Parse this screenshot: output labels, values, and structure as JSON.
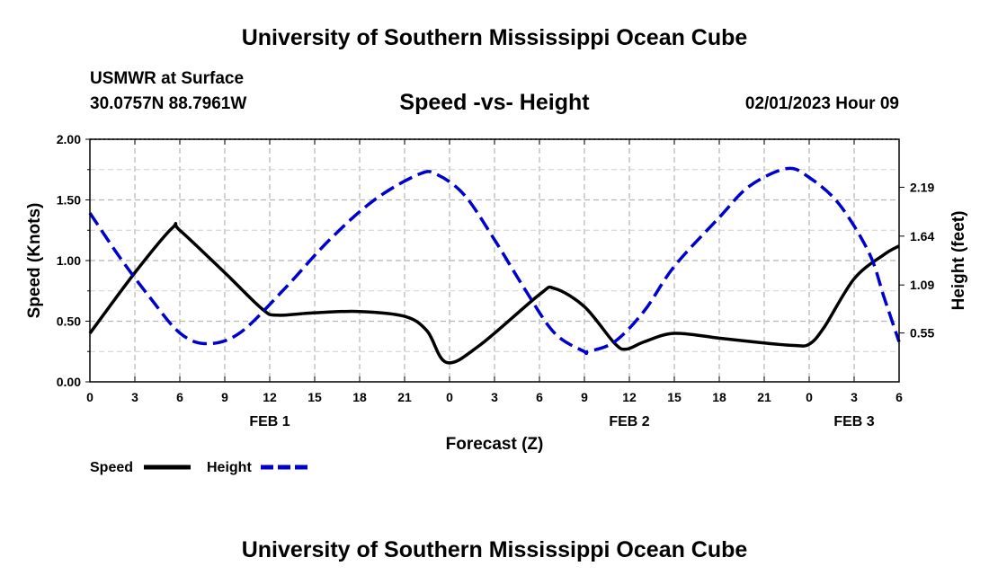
{
  "header": {
    "title": "University of Southern Mississippi Ocean Cube",
    "station_name": "USMWR at Surface",
    "station_coords": "30.0757N  88.7961W",
    "date_label": "02/01/2023 Hour 09"
  },
  "footer": {
    "title": "University of Southern Mississippi Ocean Cube"
  },
  "chart_data": {
    "type": "line",
    "title": "Speed -vs- Height",
    "xlabel": "Forecast (Z)",
    "ylabel": "Speed (Knots)",
    "y2label": "Height (feet)",
    "x_range_hours": [
      0,
      54
    ],
    "x_tick_step_hours": 3,
    "x_tick_labels": [
      "0",
      "3",
      "6",
      "9",
      "12",
      "15",
      "18",
      "21",
      "0",
      "3",
      "6",
      "9",
      "12",
      "15",
      "18",
      "21",
      "0",
      "3",
      "6"
    ],
    "date_labels": [
      {
        "hour": 12,
        "text": "FEB 1"
      },
      {
        "hour": 36,
        "text": "FEB 2"
      },
      {
        "hour": 51,
        "text": "FEB 3"
      }
    ],
    "ylim": [
      0,
      2.0
    ],
    "y_ticks": [
      0,
      0.5,
      1.0,
      1.5,
      2.0
    ],
    "y_tick_labels": [
      "0.00",
      "0.50",
      "1.00",
      "1.50",
      "2.00"
    ],
    "y2lim": [
      0.0,
      2.73
    ],
    "y2_ticks": [
      0.55,
      1.09,
      1.64,
      2.19
    ],
    "y2_tick_labels": [
      "0.55",
      "1.09",
      "1.64",
      "2.19"
    ],
    "grid": true,
    "legend_position": "bottom-left",
    "series": [
      {
        "name": "Speed",
        "axis": "left",
        "color": "#000000",
        "style": "solid",
        "x": [
          0,
          3,
          5.5,
          6,
          9,
          11.5,
          12.5,
          15,
          18,
          21,
          22.5,
          23.8,
          26,
          30,
          31,
          33,
          35,
          35.8,
          37,
          39,
          42,
          45,
          47,
          48,
          49,
          51,
          53,
          54
        ],
        "y": [
          0.4,
          0.9,
          1.27,
          1.25,
          0.9,
          0.6,
          0.55,
          0.57,
          0.58,
          0.54,
          0.42,
          0.16,
          0.3,
          0.72,
          0.77,
          0.62,
          0.32,
          0.27,
          0.33,
          0.4,
          0.36,
          0.32,
          0.3,
          0.31,
          0.45,
          0.85,
          1.05,
          1.12
        ]
      },
      {
        "name": "Height",
        "axis": "right",
        "color": "#0000cc",
        "style": "dashed",
        "x": [
          0,
          2,
          4,
          6,
          7.8,
          10,
          13,
          16,
          19,
          22,
          23.2,
          25,
          27,
          29,
          31,
          33,
          33.2,
          35,
          37,
          39,
          42,
          44,
          46.5,
          48,
          50,
          52,
          53,
          54
        ],
        "y": [
          1.9,
          1.4,
          0.95,
          0.55,
          0.43,
          0.55,
          1.05,
          1.6,
          2.05,
          2.34,
          2.33,
          2.1,
          1.6,
          1.05,
          0.55,
          0.34,
          0.34,
          0.45,
          0.8,
          1.3,
          1.85,
          2.2,
          2.4,
          2.3,
          2.0,
          1.45,
          0.95,
          0.45
        ]
      }
    ]
  }
}
